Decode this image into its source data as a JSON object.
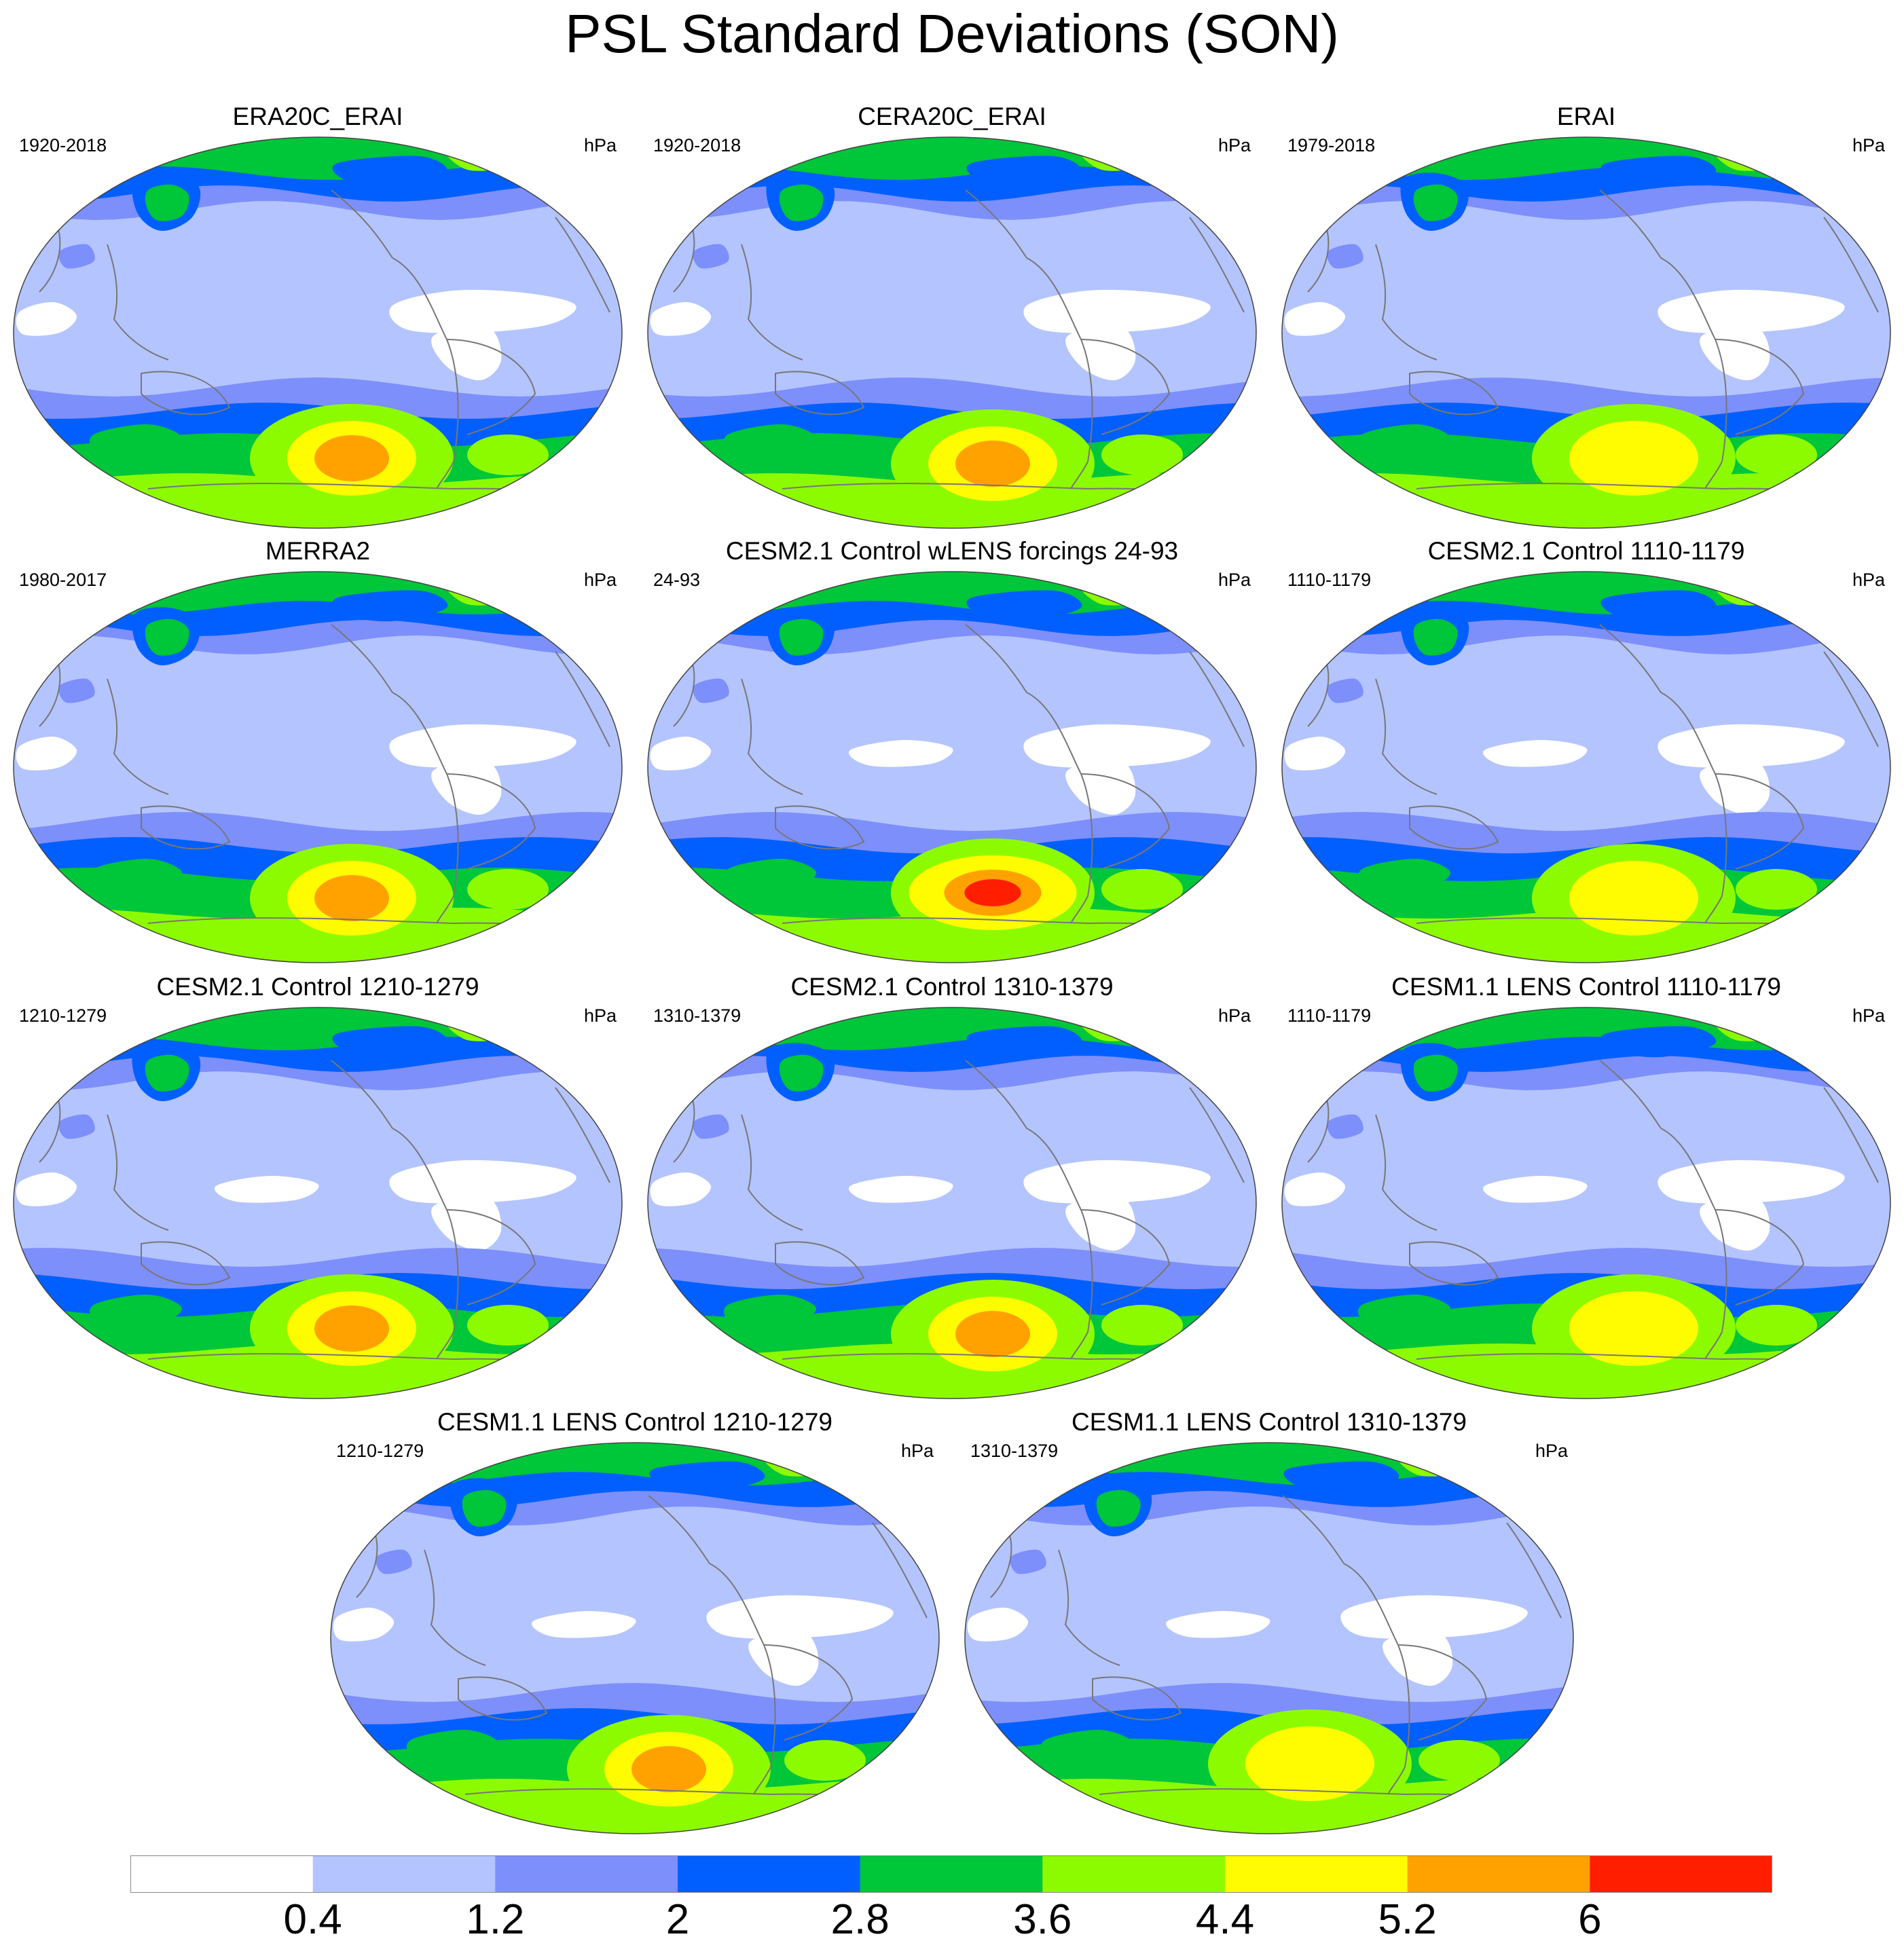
{
  "title": "PSL Standard Deviations (SON)",
  "panels": [
    {
      "title": "ERA20C_ERAI",
      "period": "1920-2018",
      "units": "hPa",
      "max_level": 7
    },
    {
      "title": "CERA20C_ERAI",
      "period": "1920-2018",
      "units": "hPa",
      "max_level": 7
    },
    {
      "title": "ERAI",
      "period": "1979-2018",
      "units": "hPa",
      "max_level": 6
    },
    {
      "title": "MERRA2",
      "period": "1980-2017",
      "units": "hPa",
      "max_level": 7
    },
    {
      "title": "CESM2.1 Control wLENS forcings 24-93",
      "period": "24-93",
      "units": "hPa",
      "max_level": 8
    },
    {
      "title": "CESM2.1 Control 1110-1179",
      "period": "1110-1179",
      "units": "hPa",
      "max_level": 6
    },
    {
      "title": "CESM2.1 Control 1210-1279",
      "period": "1210-1279",
      "units": "hPa",
      "max_level": 7
    },
    {
      "title": "CESM2.1 Control 1310-1379",
      "period": "1310-1379",
      "units": "hPa",
      "max_level": 7
    },
    {
      "title": "CESM1.1 LENS Control 1110-1179",
      "period": "1110-1179",
      "units": "hPa",
      "max_level": 6
    },
    {
      "title": "CESM1.1 LENS Control 1210-1279",
      "period": "1210-1279",
      "units": "hPa",
      "max_level": 7
    },
    {
      "title": "CESM1.1 LENS Control 1310-1379",
      "period": "1310-1379",
      "units": "hPa",
      "max_level": 6
    }
  ],
  "colorbar": {
    "labels": [
      "0.4",
      "1.2",
      "2",
      "2.8",
      "3.6",
      "4.4",
      "5.2",
      "6"
    ],
    "colors": [
      "#ffffff",
      "#b4c4ff",
      "#7d8ffb",
      "#005ffe",
      "#00c63a",
      "#8dfb00",
      "#fffb00",
      "#ffa200",
      "#ff1e00"
    ]
  }
}
